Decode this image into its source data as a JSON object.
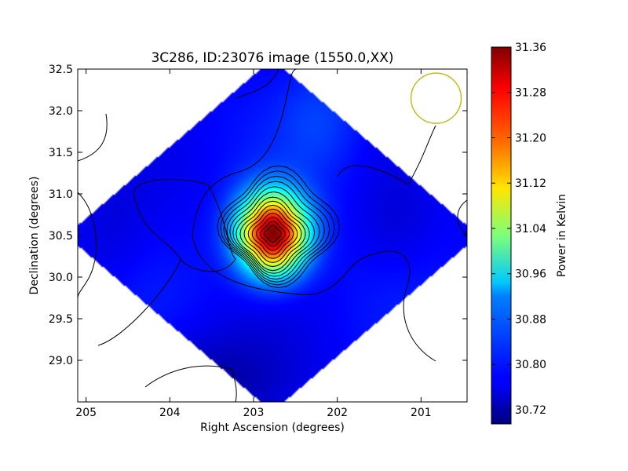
{
  "chart_data": {
    "type": "heatmap",
    "title": "3C286, ID:23076 image (1550.0,XX)",
    "xlabel": "Right Ascension (degrees)",
    "ylabel": "Declination (degrees)",
    "xlim": [
      205.1,
      200.45
    ],
    "ylim": [
      28.5,
      32.5
    ],
    "x_ticks": [
      "205",
      "204",
      "203",
      "202",
      "201"
    ],
    "x_tick_values": [
      205,
      204,
      203,
      202,
      201
    ],
    "y_ticks": [
      "29.0",
      "29.5",
      "30.0",
      "30.5",
      "31.0",
      "31.5",
      "32.0",
      "32.5"
    ],
    "y_tick_values": [
      29.0,
      29.5,
      30.0,
      30.5,
      31.0,
      31.5,
      32.0,
      32.5
    ],
    "colorbar": {
      "label": "Power in Kelvin",
      "range": [
        30.695,
        31.36
      ],
      "colormap": "jet",
      "ticks": [
        "30.72",
        "30.80",
        "30.88",
        "30.96",
        "31.04",
        "31.12",
        "31.20",
        "31.28",
        "31.36"
      ],
      "tick_values": [
        30.72,
        30.8,
        30.88,
        30.96,
        31.04,
        31.12,
        31.2,
        31.28,
        31.36
      ]
    },
    "peak": {
      "ra": 202.77,
      "dec": 30.52,
      "value": 31.36
    },
    "background_level": 30.78,
    "beam_marker": {
      "ra": 200.82,
      "dec": 32.15,
      "color": "#c8b820"
    },
    "grid": false,
    "colors": {
      "beam_circle": "#c8b820",
      "contour": "#000000"
    }
  }
}
